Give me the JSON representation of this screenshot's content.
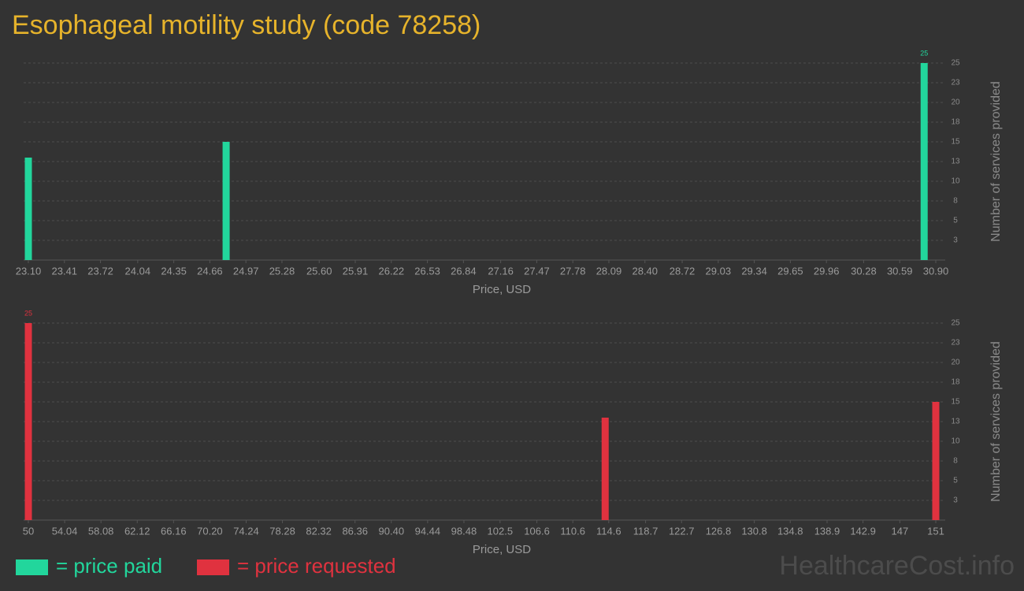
{
  "title": "Esophageal motility study (code 78258)",
  "chart_data": [
    {
      "type": "bar",
      "x": [
        23.1,
        24.8,
        30.8
      ],
      "values": [
        13,
        15,
        25
      ],
      "color": "#22d69c",
      "xlim": [
        23.1,
        30.9
      ],
      "xticks": [
        {
          "value": 23.1,
          "label": "23.10"
        },
        23.41,
        23.72,
        24.04,
        24.35,
        24.66,
        24.97,
        25.28,
        {
          "value": 25.6,
          "label": "25.60"
        },
        25.91,
        26.22,
        26.53,
        26.84,
        27.16,
        27.47,
        27.78,
        28.09,
        {
          "value": 28.4,
          "label": "28.40"
        },
        28.72,
        29.03,
        29.34,
        29.65,
        29.96,
        30.28,
        30.59,
        {
          "value": 30.9,
          "label": "30.90"
        }
      ],
      "ylim": [
        0,
        25
      ],
      "yticks": [
        {
          "value": 2.5,
          "label": "3"
        },
        5,
        {
          "value": 7.5,
          "label": "8"
        },
        10,
        {
          "value": 12.5,
          "label": "13"
        },
        15,
        {
          "value": 17.5,
          "label": "18"
        },
        20,
        {
          "value": 22.5,
          "label": "23"
        },
        25
      ],
      "xlabel": "Price, USD",
      "ylabel": "Number of services provided",
      "grid": true
    },
    {
      "type": "bar",
      "x": [
        50,
        114.2,
        151
      ],
      "values": [
        25,
        13,
        15
      ],
      "color": "#e0323f",
      "xlim": [
        50,
        151
      ],
      "xticks": [
        50,
        54.04,
        58.08,
        62.12,
        66.16,
        {
          "value": 70.2,
          "label": "70.20"
        },
        74.24,
        78.28,
        82.32,
        86.36,
        {
          "value": 90.4,
          "label": "90.40"
        },
        94.44,
        98.48,
        102.5,
        106.6,
        110.6,
        114.6,
        118.7,
        122.7,
        126.8,
        130.8,
        134.8,
        138.9,
        142.9,
        147,
        151
      ],
      "ylim": [
        0,
        25
      ],
      "yticks": [
        {
          "value": 2.5,
          "label": "3"
        },
        5,
        {
          "value": 7.5,
          "label": "8"
        },
        10,
        {
          "value": 12.5,
          "label": "13"
        },
        15,
        {
          "value": 17.5,
          "label": "18"
        },
        20,
        {
          "value": 22.5,
          "label": "23"
        },
        25
      ],
      "xlabel": "Price, USD",
      "ylabel": "Number of services provided",
      "grid": true
    }
  ],
  "legend": [
    "= price paid",
    "= price requested"
  ],
  "watermark": "HealthcareCost.info"
}
